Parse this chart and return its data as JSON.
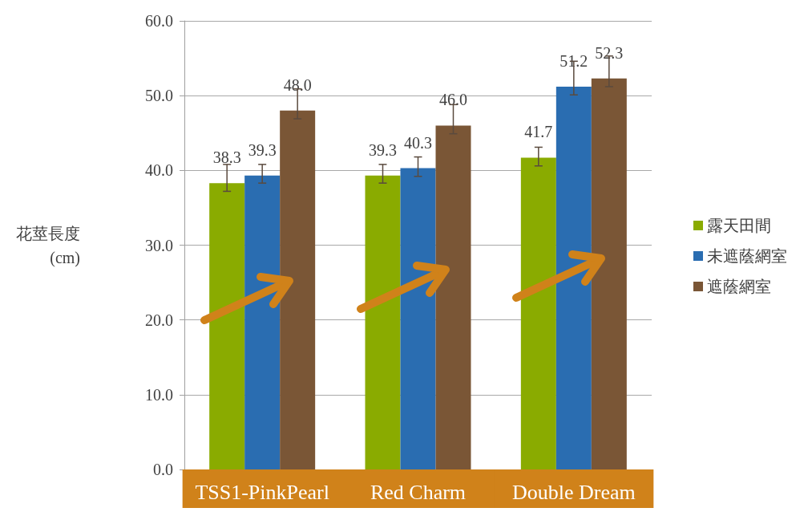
{
  "chart_data": {
    "type": "bar",
    "ylabel": "花莖長度\n(cm)",
    "categories": [
      "TSS1-PinkPearl",
      "Red Charm",
      "Double Dream"
    ],
    "ylim": [
      0,
      60
    ],
    "yticks": [
      {
        "value": 0,
        "label": "0.0"
      },
      {
        "value": 10,
        "label": "10.0"
      },
      {
        "value": 20,
        "label": "20.0"
      },
      {
        "value": 30,
        "label": "30.0"
      },
      {
        "value": 40,
        "label": "40.0"
      },
      {
        "value": 50,
        "label": "50.0"
      },
      {
        "value": 60,
        "label": "60.0"
      }
    ],
    "grid": "y",
    "legend": "right",
    "series": [
      {
        "name": "露天田間",
        "color": "#8aab00",
        "values": [
          38.3,
          39.3,
          41.7
        ],
        "value_labels": [
          "38.3",
          "39.3",
          "41.7"
        ],
        "errors": [
          [
            37.2,
            40.8
          ],
          [
            38.3,
            40.8
          ],
          [
            40.6,
            43.1
          ]
        ]
      },
      {
        "name": "未遮蔭網室",
        "color": "#2a6db1",
        "values": [
          39.3,
          40.3,
          51.2
        ],
        "value_labels": [
          "39.3",
          "40.3",
          "51.2"
        ],
        "errors": [
          [
            38.3,
            40.8
          ],
          [
            39.2,
            41.8
          ],
          [
            50.1,
            54.6
          ]
        ]
      },
      {
        "name": "遮蔭網室",
        "color": "#7a5636",
        "values": [
          48.0,
          46.0,
          52.3
        ],
        "value_labels": [
          "48.0",
          "46.0",
          "52.3"
        ],
        "errors": [
          [
            46.9,
            50.9
          ],
          [
            44.9,
            48.8
          ],
          [
            51.2,
            55.3
          ]
        ]
      }
    ]
  }
}
